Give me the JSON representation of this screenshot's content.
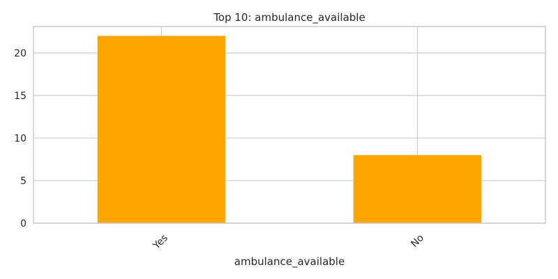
{
  "chart_data": {
    "type": "bar",
    "title": "Top 10: ambulance_available",
    "xlabel": "ambulance_available",
    "ylabel": "",
    "categories": [
      "Yes",
      "No"
    ],
    "values": [
      22,
      8
    ],
    "ylim": [
      0,
      23.1
    ],
    "yticks": [
      0,
      5,
      10,
      15,
      20
    ],
    "grid": true,
    "legend": "none",
    "bar_color": "#FFA500",
    "grid_color": "#cccccc",
    "frame_color": "#cccccc",
    "tick_rotation_deg": -45
  }
}
